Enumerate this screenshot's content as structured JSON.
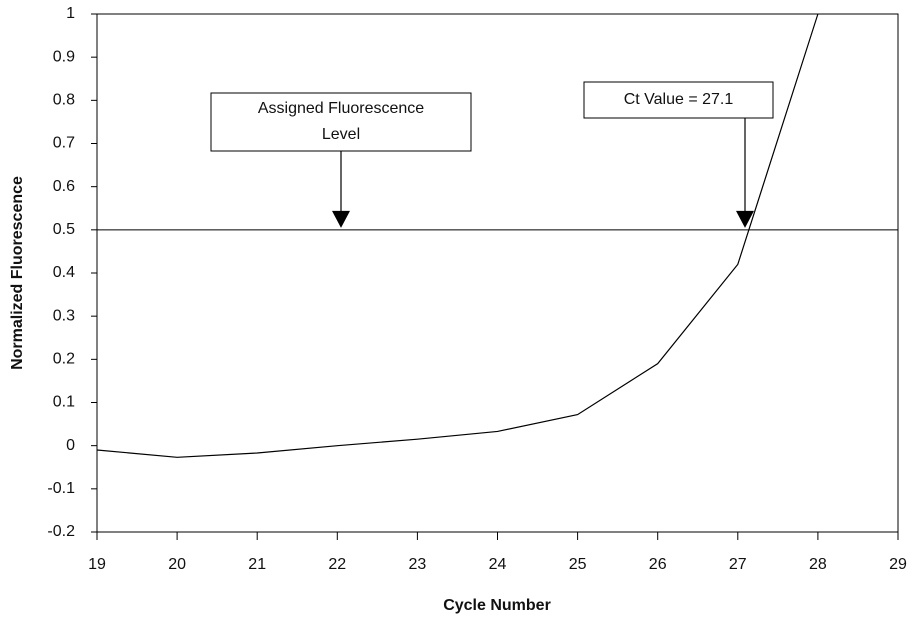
{
  "chart_data": {
    "type": "line",
    "x_label": "Cycle Number",
    "y_label": "Normalized Fluorescence",
    "x": [
      19,
      20,
      21,
      22,
      23,
      24,
      25,
      26,
      27,
      28
    ],
    "series": [
      {
        "name": null,
        "color": "#000000",
        "values": [
          -0.01,
          -0.027,
          -0.017,
          0.0,
          0.015,
          0.033,
          0.072,
          0.19,
          0.42,
          1.0
        ]
      }
    ],
    "threshold": 0.5,
    "xlim": [
      19,
      29
    ],
    "xticks": [
      19,
      20,
      21,
      22,
      23,
      24,
      25,
      26,
      27,
      28,
      29
    ],
    "ylim": [
      -0.2,
      1
    ],
    "yticks": [
      -0.2,
      -0.1,
      0,
      0.1,
      0.2,
      0.3,
      0.4,
      0.5,
      0.6,
      0.7,
      0.8,
      0.9,
      1
    ],
    "annotations": [
      {
        "lines": [
          "Assigned Fluorescence",
          "Level"
        ]
      },
      {
        "lines": [
          "Ct Value = 27.1"
        ]
      }
    ]
  }
}
